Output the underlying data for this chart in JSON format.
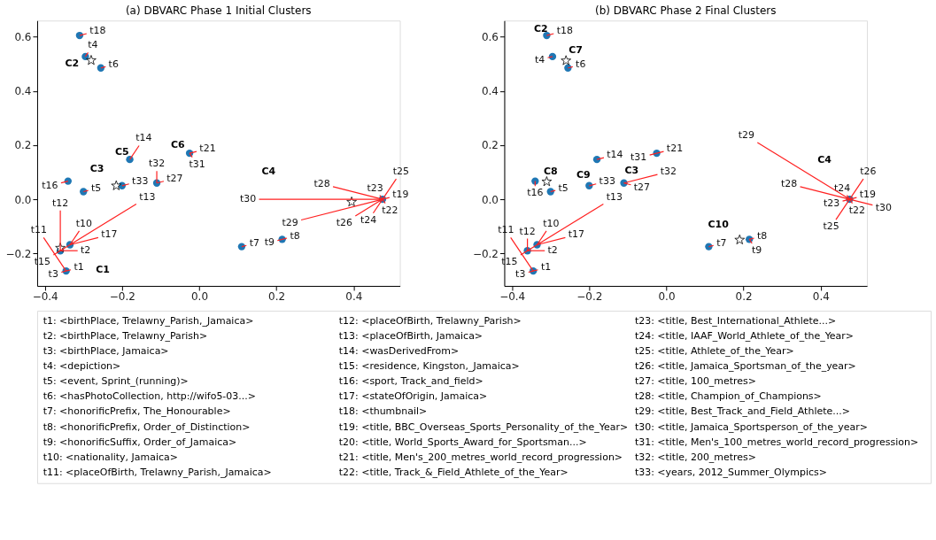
{
  "chart_data": [
    {
      "type": "scatter",
      "title": "(a) DBVARC Phase 1 Initial Clusters",
      "xlim": [
        -0.42,
        0.52
      ],
      "ylim": [
        -0.32,
        0.66
      ],
      "xticks": [
        {
          "value": -0.4,
          "label": "−0.4"
        },
        {
          "value": -0.2,
          "label": "−0.2"
        },
        {
          "value": 0.0,
          "label": "0.0"
        },
        {
          "value": 0.2,
          "label": "0.2"
        },
        {
          "value": 0.4,
          "label": "0.4"
        }
      ],
      "yticks": [
        {
          "value": -0.2,
          "label": "−0.2"
        },
        {
          "value": 0.0,
          "label": "0.0"
        },
        {
          "value": 0.2,
          "label": "0.2"
        },
        {
          "value": 0.4,
          "label": "0.4"
        },
        {
          "value": 0.6,
          "label": "0.6"
        }
      ],
      "series": [
        {
          "color": "#1f77b4",
          "marker": "circle",
          "x": [
            -0.345,
            -0.36,
            -0.335,
            -0.31,
            -0.295,
            -0.255,
            -0.3,
            -0.34,
            -0.2,
            -0.11,
            -0.18,
            -0.025,
            0.11,
            0.215,
            0.475
          ],
          "values": [
            -0.265,
            -0.19,
            -0.168,
            0.605,
            0.527,
            0.485,
            0.028,
            0.067,
            0.05,
            0.06,
            0.147,
            0.17,
            -0.175,
            -0.148,
            0.0
          ]
        },
        {
          "color": "#ffffff",
          "marker": "star",
          "x": [
            -0.28,
            -0.215,
            -0.36,
            0.395
          ],
          "values": [
            0.513,
            0.05,
            -0.18,
            -0.01
          ]
        }
      ],
      "annotations": [
        {
          "text": "t1",
          "x": -0.345,
          "y": -0.265
        },
        {
          "text": "t3",
          "x": -0.345,
          "y": -0.265
        },
        {
          "text": "t11",
          "x": -0.345,
          "y": -0.265
        },
        {
          "text": "t2",
          "x": -0.36,
          "y": -0.19
        },
        {
          "text": "t12",
          "x": -0.36,
          "y": -0.19
        },
        {
          "text": "t13",
          "x": -0.36,
          "y": -0.19
        },
        {
          "text": "t15",
          "x": -0.36,
          "y": -0.19
        },
        {
          "text": "t10",
          "x": -0.335,
          "y": -0.168
        },
        {
          "text": "t17",
          "x": -0.335,
          "y": -0.168
        },
        {
          "text": "t18",
          "x": -0.31,
          "y": 0.605
        },
        {
          "text": "t4",
          "x": -0.295,
          "y": 0.527
        },
        {
          "text": "t6",
          "x": -0.255,
          "y": 0.485
        },
        {
          "text": "t5",
          "x": -0.3,
          "y": 0.028
        },
        {
          "text": "t16",
          "x": -0.34,
          "y": 0.067
        },
        {
          "text": "t33",
          "x": -0.2,
          "y": 0.05
        },
        {
          "text": "t27",
          "x": -0.11,
          "y": 0.06
        },
        {
          "text": "t32",
          "x": -0.11,
          "y": 0.06
        },
        {
          "text": "t14",
          "x": -0.18,
          "y": 0.147
        },
        {
          "text": "t21",
          "x": -0.025,
          "y": 0.17
        },
        {
          "text": "t31",
          "x": -0.025,
          "y": 0.17
        },
        {
          "text": "t7",
          "x": 0.11,
          "y": -0.175
        },
        {
          "text": "t8",
          "x": 0.215,
          "y": -0.148
        },
        {
          "text": "t9",
          "x": 0.215,
          "y": -0.148
        },
        {
          "text": "t19",
          "x": 0.475,
          "y": 0.0
        },
        {
          "text": "t22",
          "x": 0.475,
          "y": 0.0
        },
        {
          "text": "t23",
          "x": 0.475,
          "y": 0.0
        },
        {
          "text": "t24",
          "x": 0.475,
          "y": 0.0
        },
        {
          "text": "t25",
          "x": 0.475,
          "y": 0.0
        },
        {
          "text": "t26",
          "x": 0.475,
          "y": 0.0
        },
        {
          "text": "t28",
          "x": 0.475,
          "y": 0.0
        },
        {
          "text": "t29",
          "x": 0.475,
          "y": 0.0
        },
        {
          "text": "t30",
          "x": 0.475,
          "y": 0.0
        },
        "C1",
        "C2",
        "C3",
        "C4",
        "C5",
        "C6"
      ]
    },
    {
      "type": "scatter",
      "title": "(b) DBVARC Phase 2 Final Clusters",
      "xlim": [
        -0.42,
        0.52
      ],
      "ylim": [
        -0.32,
        0.66
      ],
      "xticks": [
        {
          "value": -0.4,
          "label": "−0.4"
        },
        {
          "value": -0.2,
          "label": "−0.2"
        },
        {
          "value": 0.0,
          "label": "0.0"
        },
        {
          "value": 0.2,
          "label": "0.2"
        },
        {
          "value": 0.4,
          "label": "0.4"
        }
      ],
      "yticks": [
        {
          "value": -0.2,
          "label": "−0.2"
        },
        {
          "value": 0.0,
          "label": "0.0"
        },
        {
          "value": 0.2,
          "label": "0.2"
        },
        {
          "value": 0.4,
          "label": "0.4"
        },
        {
          "value": 0.6,
          "label": "0.6"
        }
      ],
      "series": [
        {
          "color": "#1f77b4",
          "marker": "circle",
          "x": [
            -0.345,
            -0.36,
            -0.335,
            -0.31,
            -0.295,
            -0.255,
            -0.3,
            -0.34,
            -0.2,
            -0.11,
            -0.18,
            -0.025,
            0.11,
            0.215,
            0.475
          ],
          "values": [
            -0.265,
            -0.19,
            -0.168,
            0.605,
            0.527,
            0.485,
            0.028,
            0.067,
            0.05,
            0.06,
            0.147,
            0.17,
            -0.175,
            -0.148,
            0.0
          ]
        },
        {
          "color": "#ffffff",
          "marker": "star",
          "x": [
            -0.26,
            -0.31,
            0.19
          ],
          "values": [
            0.512,
            0.065,
            -0.15
          ]
        }
      ],
      "annotations": [
        {
          "text": "t1",
          "x": -0.345,
          "y": -0.265
        },
        {
          "text": "t3",
          "x": -0.345,
          "y": -0.265
        },
        {
          "text": "t11",
          "x": -0.345,
          "y": -0.265
        },
        {
          "text": "t2",
          "x": -0.36,
          "y": -0.19
        },
        {
          "text": "t12",
          "x": -0.36,
          "y": -0.19
        },
        {
          "text": "t13",
          "x": -0.36,
          "y": -0.19
        },
        {
          "text": "t15",
          "x": -0.36,
          "y": -0.19
        },
        {
          "text": "t10",
          "x": -0.335,
          "y": -0.168
        },
        {
          "text": "t17",
          "x": -0.335,
          "y": -0.168
        },
        {
          "text": "t18",
          "x": -0.31,
          "y": 0.605
        },
        {
          "text": "t4",
          "x": -0.295,
          "y": 0.527
        },
        {
          "text": "t6",
          "x": -0.255,
          "y": 0.485
        },
        {
          "text": "t5",
          "x": -0.3,
          "y": 0.028
        },
        {
          "text": "t16",
          "x": -0.34,
          "y": 0.067
        },
        {
          "text": "t33",
          "x": -0.2,
          "y": 0.05
        },
        {
          "text": "t27",
          "x": -0.11,
          "y": 0.06
        },
        {
          "text": "t32",
          "x": -0.11,
          "y": 0.06
        },
        {
          "text": "t14",
          "x": -0.18,
          "y": 0.147
        },
        {
          "text": "t21",
          "x": -0.025,
          "y": 0.17
        },
        {
          "text": "t31",
          "x": -0.025,
          "y": 0.17
        },
        {
          "text": "t7",
          "x": 0.11,
          "y": -0.175
        },
        {
          "text": "t8",
          "x": 0.215,
          "y": -0.148
        },
        {
          "text": "t9",
          "x": 0.215,
          "y": -0.148
        },
        {
          "text": "t19",
          "x": 0.475,
          "y": 0.0
        },
        {
          "text": "t22",
          "x": 0.475,
          "y": 0.0
        },
        {
          "text": "t23",
          "x": 0.475,
          "y": 0.0
        },
        {
          "text": "t24",
          "x": 0.475,
          "y": 0.0
        },
        {
          "text": "t25",
          "x": 0.475,
          "y": 0.0
        },
        {
          "text": "t26",
          "x": 0.475,
          "y": 0.0
        },
        {
          "text": "t28",
          "x": 0.475,
          "y": 0.0
        },
        {
          "text": "t29",
          "x": 0.475,
          "y": 0.0
        },
        {
          "text": "t30",
          "x": 0.475,
          "y": 0.0
        },
        "C2",
        "C7",
        "C8",
        "C9",
        "C3",
        "C10",
        "C4"
      ]
    },
    {
      "type": "other",
      "annotations": [
        "t1: <birthPlace, Trelawny_Parish,_Jamaica>",
        "t2: <birthPlace, Trelawny_Parish>",
        "t3: <birthPlace, Jamaica>",
        "t4: <depiction>",
        "t5: <event, Sprint_(running)>",
        "t6: <hasPhotoCollection, http://wifo5-03...>",
        "t7: <honorificPrefix, The_Honourable>",
        "t8: <honorificPrefix, Order_of_Distinction>",
        "t9: <honorificSuffix, Order_of_Jamaica>",
        "t10: <nationality, Jamaica>",
        "t11: <placeOfBirth, Trelawny_Parish,_Jamaica>",
        "t12: <placeOfBirth, Trelawny_Parish>",
        "t13: <placeOfBirth, Jamaica>",
        "t14: <wasDerivedFrom>",
        "t15: <residence, Kingston,_Jamaica>",
        "t16: <sport, Track_and_field>",
        "t17: <stateOfOrigin, Jamaica>",
        "t18: <thumbnail>",
        "t19: <title, BBC_Overseas_Sports_Personality_of_the_Year>",
        "t20: <title, World_Sports_Award_for_Sportsman...>",
        "t21: <title, Men's_200_metres_world_record_progression>",
        "t22: <title, Track_&_Field_Athlete_of_the_Year>",
        "t23: <title, Best_International_Athlete...>",
        "t24: <title, IAAF_World_Athlete_of_the_Year>",
        "t25: <title, Athlete_of_the_Year>",
        "t26: <title, Jamaica_Sportsman_of_the_year>",
        "t27: <title, 100_metres>",
        "t28: <title, Champion_of_Champions>",
        "t29: <title, Best_Track_and_Field_Athlete...>",
        "t30: <title, Jamaica_Sportsperson_of_the_year>",
        "t31: <title, Men's_100_metres_world_record_progression>",
        "t32: <title, 200_metres>",
        "t33: <years, 2012_Summer_Olympics>"
      ]
    }
  ]
}
